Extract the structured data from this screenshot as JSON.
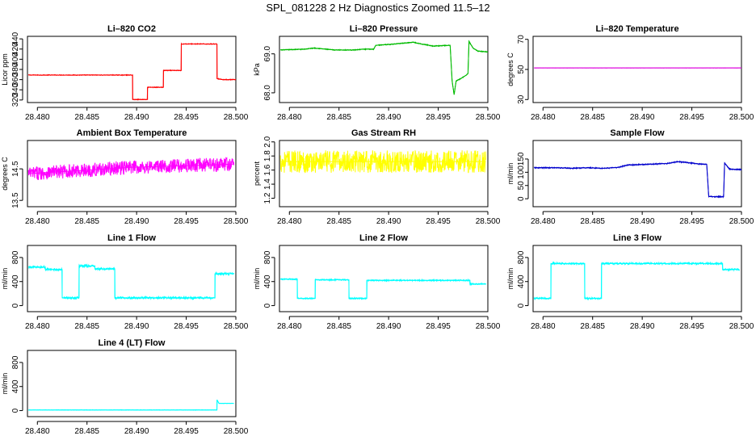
{
  "figure_title": "SPL_081228  2 Hz Diagnostics Zoomed 11.5–12",
  "chart_data": [
    {
      "type": "line",
      "title": "Li–820 CO2",
      "ylabel": "Licor ppm",
      "xlabel": "",
      "color": "#ff0000",
      "xlim": [
        28.479,
        28.5
      ],
      "ylim": [
        315,
        445
      ],
      "xticks": [
        "28.480",
        "28.485",
        "28.490",
        "28.495",
        "28.500"
      ],
      "xtick_values": [
        28.48,
        28.485,
        28.49,
        28.495,
        28.5
      ],
      "yticks": [
        "320",
        "340",
        "360",
        "380",
        "400",
        "420",
        "440"
      ],
      "ytick_values": [
        320,
        340,
        360,
        380,
        400,
        420,
        440
      ],
      "noise": 0.7,
      "x": [
        28.4791,
        28.4896,
        28.4896,
        28.4911,
        28.4911,
        28.4927,
        28.4927,
        28.4945,
        28.4945,
        28.4981,
        28.4981,
        28.4987,
        28.5
      ],
      "y": [
        369,
        369,
        321,
        321,
        345,
        345,
        378,
        378,
        430,
        430,
        362,
        360,
        360
      ]
    },
    {
      "type": "line",
      "title": "Li–820 Pressure",
      "ylabel": "kPa",
      "xlabel": "",
      "color": "#00bb00",
      "xlim": [
        28.479,
        28.5
      ],
      "ylim": [
        67.75,
        69.45
      ],
      "xticks": [
        "28.480",
        "28.485",
        "28.490",
        "28.495",
        "28.500"
      ],
      "xtick_values": [
        28.48,
        28.485,
        28.49,
        28.495,
        28.5
      ],
      "yticks": [
        "68.0",
        "69.0"
      ],
      "ytick_values": [
        68.0,
        69.0
      ],
      "noise": 0.01,
      "x": [
        28.4791,
        28.4815,
        28.4825,
        28.4845,
        28.4865,
        28.4875,
        28.4885,
        28.4887,
        28.4905,
        28.4925,
        28.4928,
        28.4945,
        28.4962,
        28.4964,
        28.4966,
        28.4968,
        28.4975,
        28.4978,
        28.498,
        28.4981,
        28.4985,
        28.499,
        28.5
      ],
      "y": [
        69.1,
        69.12,
        69.15,
        69.1,
        69.1,
        69.12,
        69.12,
        69.22,
        69.25,
        69.3,
        69.28,
        69.2,
        69.22,
        68.3,
        67.95,
        68.3,
        68.4,
        68.45,
        68.5,
        69.32,
        69.15,
        69.07,
        69.05
      ]
    },
    {
      "type": "line",
      "title": "Li–820 Temperature",
      "ylabel": "degrees C",
      "xlabel": "",
      "color": "#dd00dd",
      "xlim": [
        28.479,
        28.5
      ],
      "ylim": [
        28,
        72
      ],
      "xticks": [
        "28.480",
        "28.485",
        "28.490",
        "28.495",
        "28.500"
      ],
      "xtick_values": [
        28.48,
        28.485,
        28.49,
        28.495,
        28.5
      ],
      "yticks": [
        "30",
        "50",
        "70"
      ],
      "ytick_values": [
        30,
        50,
        70
      ],
      "noise": 0.05,
      "x": [
        28.4791,
        28.5
      ],
      "y": [
        51,
        51
      ]
    },
    {
      "type": "line",
      "title": "Ambient Box Temperature",
      "ylabel": "degrees C",
      "xlabel": "",
      "color": "#ff00ff",
      "xlim": [
        28.479,
        28.5
      ],
      "ylim": [
        13.3,
        15.4
      ],
      "xticks": [
        "28.480",
        "28.485",
        "28.490",
        "28.495",
        "28.500"
      ],
      "xtick_values": [
        28.48,
        28.485,
        28.49,
        28.495,
        28.5
      ],
      "yticks": [
        "13.5",
        "14.5"
      ],
      "ytick_values": [
        13.5,
        14.5
      ],
      "noise": 0.22,
      "x": [
        28.4791,
        28.4845,
        28.4895,
        28.4945,
        28.4998
      ],
      "y": [
        14.35,
        14.45,
        14.55,
        14.6,
        14.65
      ]
    },
    {
      "type": "line",
      "title": "Gas Stream RH",
      "ylabel": "percent",
      "xlabel": "",
      "color": "#ffff00",
      "xlim": [
        28.479,
        28.5
      ],
      "ylim": [
        1.08,
        2.02
      ],
      "xticks": [
        "28.480",
        "28.485",
        "28.490",
        "28.495",
        "28.500"
      ],
      "xtick_values": [
        28.48,
        28.485,
        28.49,
        28.495,
        28.5
      ],
      "yticks": [
        "1.2",
        "1.4",
        "1.6",
        "1.8",
        "2.0"
      ],
      "ytick_values": [
        1.2,
        1.4,
        1.6,
        1.8,
        2.0
      ],
      "noise": 0.16,
      "x": [
        28.4791,
        28.4998
      ],
      "y": [
        1.72,
        1.72
      ]
    },
    {
      "type": "line",
      "title": "Sample Flow",
      "ylabel": "ml/min",
      "xlabel": "",
      "color": "#0000cc",
      "xlim": [
        28.479,
        28.5
      ],
      "ylim": [
        -30,
        220
      ],
      "xticks": [
        "28.480",
        "28.485",
        "28.490",
        "28.495",
        "28.500"
      ],
      "xtick_values": [
        28.48,
        28.485,
        28.49,
        28.495,
        28.5
      ],
      "yticks": [
        "0",
        "50",
        "100",
        "150"
      ],
      "ytick_values": [
        0,
        50,
        100,
        150
      ],
      "noise": 2,
      "x": [
        28.4791,
        28.4815,
        28.483,
        28.4845,
        28.486,
        28.4875,
        28.4885,
        28.4905,
        28.4925,
        28.4935,
        28.4945,
        28.4955,
        28.4965,
        28.4967,
        28.4982,
        28.4983,
        28.4988,
        28.5
      ],
      "y": [
        117,
        117,
        115,
        117,
        115,
        118,
        127,
        130,
        133,
        140,
        137,
        132,
        130,
        8,
        8,
        135,
        112,
        110
      ]
    },
    {
      "type": "line",
      "title": "Line 1 Flow",
      "ylabel": "ml/min",
      "xlabel": "",
      "color": "#00ffff",
      "xlim": [
        28.479,
        28.5
      ],
      "ylim": [
        -100,
        1000
      ],
      "xticks": [
        "28.480",
        "28.485",
        "28.490",
        "28.495",
        "28.500"
      ],
      "xtick_values": [
        28.48,
        28.485,
        28.49,
        28.495,
        28.5
      ],
      "yticks": [
        "0",
        "400",
        "800"
      ],
      "ytick_values": [
        0,
        400,
        800
      ],
      "noise": 18,
      "x": [
        28.4791,
        28.4808,
        28.4808,
        28.4825,
        28.4825,
        28.4842,
        28.4842,
        28.4858,
        28.4858,
        28.4878,
        28.4878,
        28.4979,
        28.4979,
        28.4998
      ],
      "y": [
        640,
        640,
        600,
        600,
        130,
        130,
        660,
        660,
        610,
        610,
        130,
        130,
        530,
        530
      ]
    },
    {
      "type": "line",
      "title": "Line 2 Flow",
      "ylabel": "ml/min",
      "xlabel": "",
      "color": "#00ffff",
      "xlim": [
        28.479,
        28.5
      ],
      "ylim": [
        -100,
        1000
      ],
      "xticks": [
        "28.480",
        "28.485",
        "28.490",
        "28.495",
        "28.500"
      ],
      "xtick_values": [
        28.48,
        28.485,
        28.49,
        28.495,
        28.5
      ],
      "yticks": [
        "0",
        "400",
        "800"
      ],
      "ytick_values": [
        0,
        400,
        800
      ],
      "noise": 10,
      "x": [
        28.4791,
        28.4808,
        28.4808,
        28.4826,
        28.4826,
        28.486,
        28.486,
        28.4878,
        28.4878,
        28.4982,
        28.4982,
        28.4998
      ],
      "y": [
        440,
        440,
        120,
        120,
        430,
        430,
        120,
        120,
        420,
        420,
        360,
        360
      ]
    },
    {
      "type": "line",
      "title": "Line 3 Flow",
      "ylabel": "ml/min",
      "xlabel": "",
      "color": "#00ffff",
      "xlim": [
        28.479,
        28.5
      ],
      "ylim": [
        -100,
        1000
      ],
      "xticks": [
        "28.480",
        "28.485",
        "28.490",
        "28.495",
        "28.500"
      ],
      "xtick_values": [
        28.48,
        28.485,
        28.49,
        28.495,
        28.5
      ],
      "yticks": [
        "0",
        "400",
        "800"
      ],
      "ytick_values": [
        0,
        400,
        800
      ],
      "noise": 14,
      "x": [
        28.4791,
        28.4808,
        28.4808,
        28.4842,
        28.4842,
        28.4859,
        28.4859,
        28.4981,
        28.4981,
        28.4998
      ],
      "y": [
        120,
        120,
        700,
        700,
        120,
        120,
        700,
        700,
        600,
        600
      ]
    },
    {
      "type": "line",
      "title": "Line 4 (LT) Flow",
      "ylabel": "ml/min",
      "xlabel": "",
      "color": "#00ffff",
      "xlim": [
        28.479,
        28.5
      ],
      "ylim": [
        -100,
        1000
      ],
      "xticks": [
        "28.480",
        "28.485",
        "28.490",
        "28.495",
        "28.500"
      ],
      "xtick_values": [
        28.48,
        28.485,
        28.49,
        28.495,
        28.5
      ],
      "yticks": [
        "0",
        "400",
        "800"
      ],
      "ytick_values": [
        0,
        400,
        800
      ],
      "noise": 3,
      "x": [
        28.4791,
        28.4981,
        28.4981,
        28.4983,
        28.4998
      ],
      "y": [
        10,
        10,
        180,
        120,
        120
      ]
    }
  ]
}
